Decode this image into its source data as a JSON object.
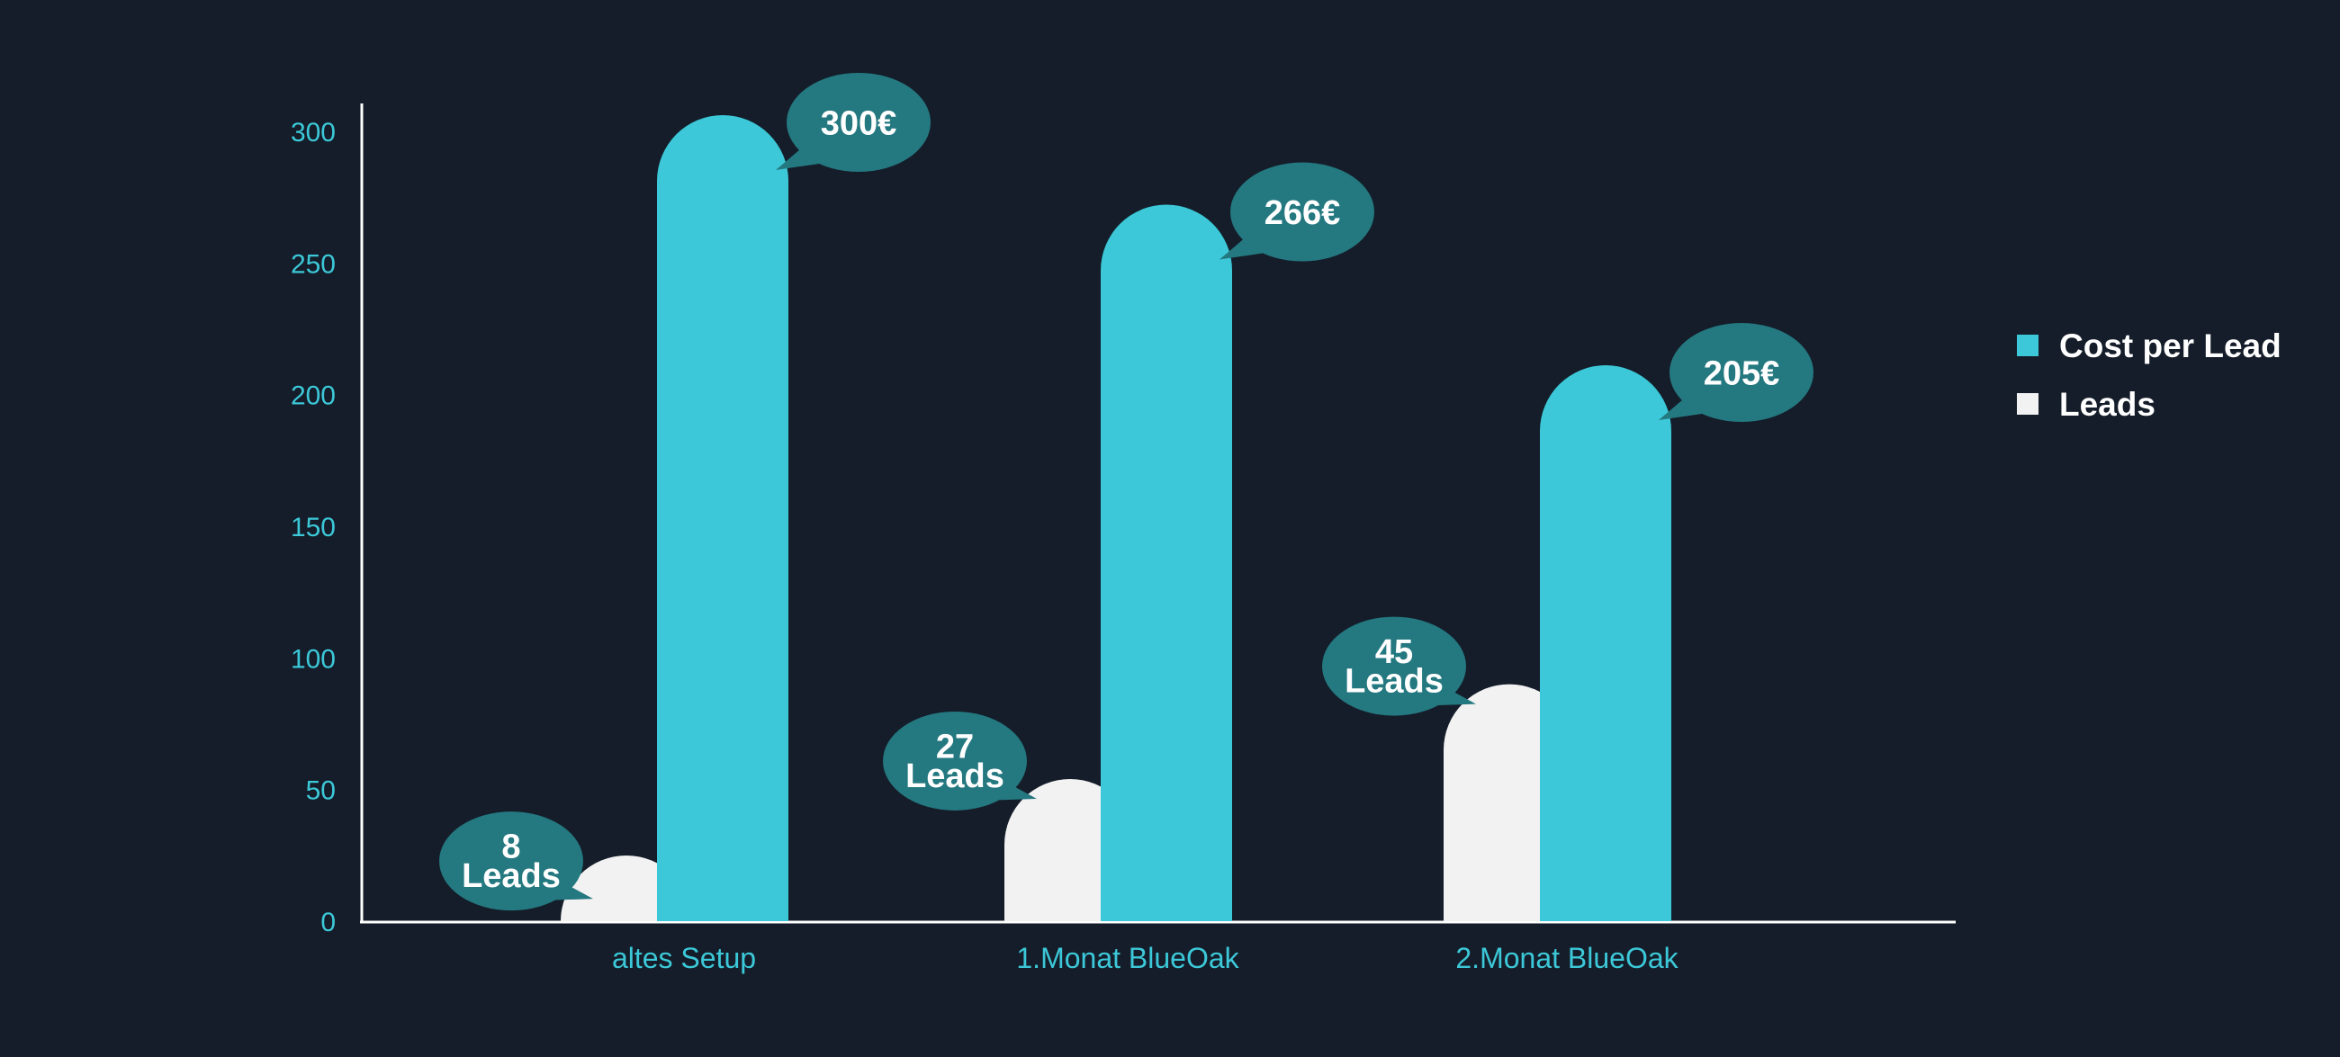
{
  "chart_data": {
    "type": "bar",
    "categories": [
      "altes Setup",
      "1.Monat BlueOak",
      "2.Monat BlueOak"
    ],
    "series": [
      {
        "name": "Cost per Lead",
        "values": [
          300,
          266,
          205
        ],
        "labels": [
          "300€",
          "266€",
          "205€"
        ],
        "color": "#3cc8d8"
      },
      {
        "name": "Leads",
        "values": [
          8,
          27,
          45
        ],
        "labels": [
          [
            "8",
            "Leads"
          ],
          [
            "27",
            "Leads"
          ],
          [
            "45",
            "Leads"
          ]
        ],
        "color": "#f2f2f2"
      }
    ],
    "y_ticks": [
      "0",
      "50",
      "100",
      "150",
      "200",
      "250",
      "300"
    ],
    "ylim": [
      0,
      310
    ],
    "title": "",
    "xlabel": "",
    "ylabel": "",
    "legend_position": "right",
    "grid": false,
    "colors": {
      "background": "#141d29",
      "axis": "#ffffff",
      "tick_text": "#3cc8d8",
      "bubble": "#247880"
    }
  }
}
